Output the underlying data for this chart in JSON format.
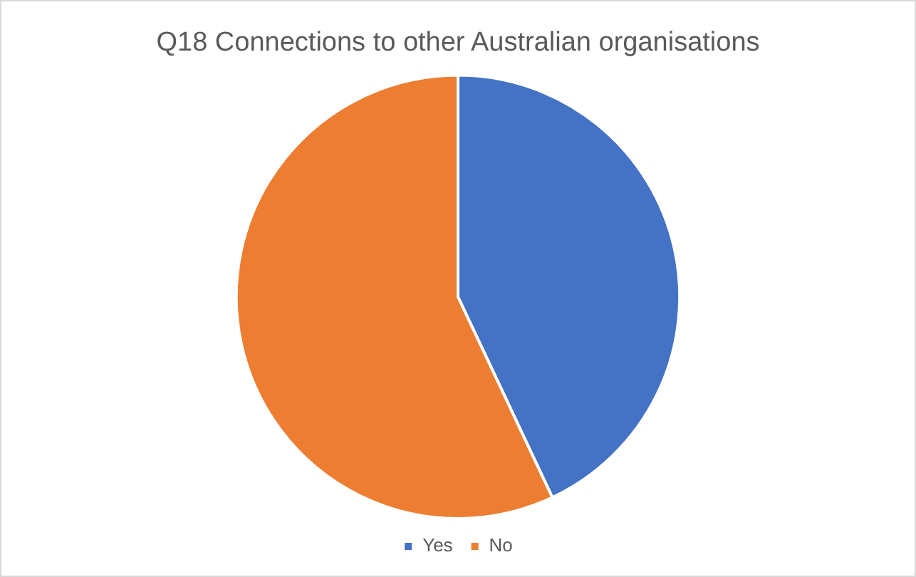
{
  "chart_data": {
    "type": "pie",
    "title": "Q18 Connections to other Australian organisations",
    "categories": [
      "Yes",
      "No"
    ],
    "values": [
      43,
      57
    ],
    "colors": [
      "#4472c4",
      "#ed7d31"
    ],
    "legend": "bottom"
  }
}
